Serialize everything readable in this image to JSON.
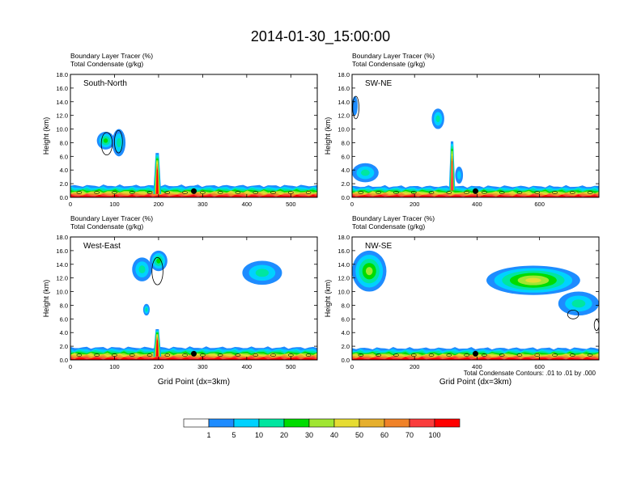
{
  "title": "2014-01-30_15:00:00",
  "footnote": "Total Condensate Contours: .01 to .01 by .000",
  "colors": {
    "levels": [
      "#ffffff",
      "#1e8cff",
      "#00d2ff",
      "#00e6a0",
      "#00dc00",
      "#a0e632",
      "#e6dc32",
      "#e6af2d",
      "#f08228",
      "#fa3c3c",
      "#ff0000"
    ],
    "contour": "#000000",
    "marker": "#000000"
  },
  "colorbar": {
    "labels": [
      "1",
      "5",
      "10",
      "20",
      "30",
      "40",
      "50",
      "60",
      "70",
      "100"
    ]
  },
  "chart_data": [
    {
      "type": "heatmap",
      "panel": "top-left",
      "header_line1": "Boundary Layer Tracer   (%)",
      "header_line2": "Total Condensate   (g/kg)",
      "section_label": "South-North",
      "ylabel": "Height (km)",
      "xlabel": "",
      "xlim": [
        0,
        560
      ],
      "ylim": [
        0,
        18
      ],
      "xticks": [
        "0",
        "100",
        "200",
        "300",
        "400",
        "500"
      ],
      "xtick_values": [
        0,
        100,
        200,
        300,
        400,
        500
      ],
      "yticks": [
        "0.0",
        "2.0",
        "4.0",
        "6.0",
        "8.0",
        "10.0",
        "12.0",
        "14.0",
        "16.0",
        "18.0"
      ],
      "marker_x": 280,
      "marker_y": 0.9,
      "boundary_layer_top_km": 1.7,
      "blobs": [
        {
          "x0": 60,
          "x1": 100,
          "y0": 7.0,
          "y1": 9.6,
          "peak": 4
        },
        {
          "x0": 95,
          "x1": 125,
          "y0": 6.0,
          "y1": 10.0,
          "peak": 3
        },
        {
          "x0": 188,
          "x1": 206,
          "y0": 0.5,
          "y1": 6.5,
          "peak": 10,
          "narrow": true
        }
      ],
      "contours": [
        {
          "x0": 70,
          "x1": 95,
          "y0": 6.2,
          "y1": 9.5
        },
        {
          "x0": 100,
          "x1": 118,
          "y0": 6.5,
          "y1": 9.8
        }
      ]
    },
    {
      "type": "heatmap",
      "panel": "top-right",
      "header_line1": "Boundary Layer Tracer   (%)",
      "header_line2": "Total Condensate   (g/kg)",
      "section_label": "SW-NE",
      "ylabel": "Height (km)",
      "xlabel": "",
      "xlim": [
        0,
        790
      ],
      "ylim": [
        0,
        18
      ],
      "xticks": [
        "0",
        "200",
        "400",
        "600"
      ],
      "xtick_values": [
        0,
        200,
        400,
        600
      ],
      "yticks": [
        "0.0",
        "2.0",
        "4.0",
        "6.0",
        "8.0",
        "10.0",
        "12.0",
        "14.0",
        "16.0",
        "18.0"
      ],
      "marker_x": 395,
      "marker_y": 0.9,
      "boundary_layer_top_km": 1.6,
      "blobs": [
        {
          "x0": 0,
          "x1": 85,
          "y0": 2.2,
          "y1": 5.0,
          "peak": 3
        },
        {
          "x0": 255,
          "x1": 295,
          "y0": 10.0,
          "y1": 13.0,
          "peak": 3
        },
        {
          "x0": 310,
          "x1": 330,
          "y0": 1.0,
          "y1": 8.2,
          "peak": 9,
          "narrow": true
        },
        {
          "x0": 330,
          "x1": 355,
          "y0": 2.0,
          "y1": 4.5,
          "peak": 2
        },
        {
          "x0": 0,
          "x1": 18,
          "y0": 12.0,
          "y1": 14.8,
          "peak": 1
        }
      ],
      "contours": [
        {
          "x0": 2,
          "x1": 22,
          "y0": 11.5,
          "y1": 14.8
        }
      ]
    },
    {
      "type": "heatmap",
      "panel": "bottom-left",
      "header_line1": "Boundary Layer Tracer   (%)",
      "header_line2": "Total Condensate   (g/kg)",
      "section_label": "West-East",
      "ylabel": "Height (km)",
      "xlabel": "Grid Point (dx=3km)",
      "xlim": [
        0,
        560
      ],
      "ylim": [
        0,
        18
      ],
      "xticks": [
        "0",
        "100",
        "200",
        "300",
        "400",
        "500"
      ],
      "xtick_values": [
        0,
        100,
        200,
        300,
        400,
        500
      ],
      "yticks": [
        "0.0",
        "2.0",
        "4.0",
        "6.0",
        "8.0",
        "10.0",
        "12.0",
        "14.0",
        "16.0",
        "18.0"
      ],
      "marker_x": 280,
      "marker_y": 0.9,
      "boundary_layer_top_km": 1.8,
      "blobs": [
        {
          "x0": 140,
          "x1": 185,
          "y0": 11.5,
          "y1": 15.0,
          "peak": 3
        },
        {
          "x0": 180,
          "x1": 220,
          "y0": 13.0,
          "y1": 16.0,
          "peak": 4
        },
        {
          "x0": 165,
          "x1": 180,
          "y0": 6.5,
          "y1": 8.2,
          "peak": 3
        },
        {
          "x0": 188,
          "x1": 206,
          "y0": 0.5,
          "y1": 4.5,
          "peak": 10,
          "narrow": true
        },
        {
          "x0": 390,
          "x1": 480,
          "y0": 11.0,
          "y1": 14.5,
          "peak": 3
        }
      ],
      "contours": [
        {
          "x0": 185,
          "x1": 210,
          "y0": 11.0,
          "y1": 15.0
        }
      ]
    },
    {
      "type": "heatmap",
      "panel": "bottom-right",
      "header_line1": "Boundary Layer Tracer   (%)",
      "header_line2": "Total Condensate   (g/kg)",
      "section_label": "NW-SE",
      "ylabel": "Height (km)",
      "xlabel": "Grid Point (dx=3km)",
      "xlim": [
        0,
        790
      ],
      "ylim": [
        0,
        18
      ],
      "xticks": [
        "0",
        "200",
        "400",
        "600"
      ],
      "xtick_values": [
        0,
        200,
        400,
        600
      ],
      "yticks": [
        "0.0",
        "2.0",
        "4.0",
        "6.0",
        "8.0",
        "10.0",
        "12.0",
        "14.0",
        "16.0",
        "18.0"
      ],
      "marker_x": 395,
      "marker_y": 0.9,
      "boundary_layer_top_km": 1.7,
      "blobs": [
        {
          "x0": 0,
          "x1": 110,
          "y0": 10.0,
          "y1": 16.0,
          "peak": 5
        },
        {
          "x0": 430,
          "x1": 730,
          "y0": 9.5,
          "y1": 13.8,
          "peak": 6
        },
        {
          "x0": 660,
          "x1": 790,
          "y0": 6.5,
          "y1": 10.0,
          "peak": 3
        }
      ],
      "contours": [
        {
          "x0": 690,
          "x1": 725,
          "y0": 6.0,
          "y1": 7.3
        },
        {
          "x0": 775,
          "x1": 790,
          "y0": 4.3,
          "y1": 5.9
        }
      ]
    }
  ]
}
